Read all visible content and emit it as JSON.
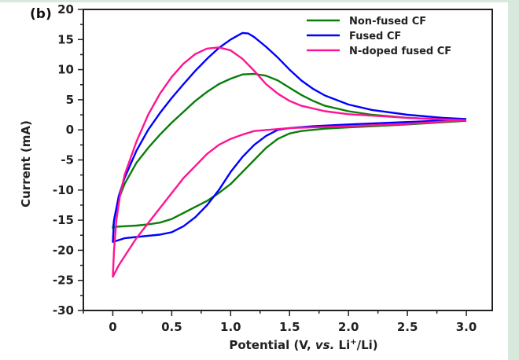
{
  "chart_data": {
    "type": "line",
    "panel_label": "(b)",
    "title": "",
    "xlabel": "Potential (V, vs. Li⁺/Li)",
    "xlabel_parts": [
      "Potential (V, ",
      "vs.",
      " Li",
      "+",
      "/Li)"
    ],
    "ylabel": "Current (mA)",
    "xlim": [
      -0.25,
      3.22
    ],
    "ylim": [
      -30,
      20
    ],
    "xticks": [
      0,
      0.5,
      1.0,
      1.5,
      2.0,
      2.5,
      3.0
    ],
    "xtick_labels": [
      "0",
      "0.5",
      "1.0",
      "1.5",
      "2.0",
      "2.5",
      "3.0"
    ],
    "xminor_ticks": [
      -0.25,
      0.25,
      0.75,
      1.25,
      1.75,
      2.25,
      2.75
    ],
    "yticks": [
      20,
      15,
      10,
      5,
      0,
      -5,
      -10,
      -15,
      -20,
      -25,
      -30
    ],
    "ytick_labels": [
      "20",
      "15",
      "10",
      "5",
      "0",
      "-5",
      "-10",
      "-15",
      "-20",
      "-25",
      "-30"
    ],
    "yminor_ticks": [
      17.5,
      12.5,
      7.5,
      2.5,
      -2.5,
      -7.5,
      -12.5,
      -17.5,
      -22.5,
      -27.5
    ],
    "grid": false,
    "legend_position": "top-right",
    "series": [
      {
        "name": "Non-fused CF",
        "color": "#0a7d0a",
        "points": [
          [
            3.0,
            1.5
          ],
          [
            2.5,
            0.9
          ],
          [
            2.0,
            0.4
          ],
          [
            1.8,
            0.2
          ],
          [
            1.6,
            -0.2
          ],
          [
            1.5,
            -0.6
          ],
          [
            1.4,
            -1.5
          ],
          [
            1.3,
            -3.0
          ],
          [
            1.2,
            -5.0
          ],
          [
            1.1,
            -7.0
          ],
          [
            1.0,
            -9.0
          ],
          [
            0.9,
            -10.5
          ],
          [
            0.8,
            -11.8
          ],
          [
            0.7,
            -12.8
          ],
          [
            0.6,
            -13.8
          ],
          [
            0.5,
            -14.8
          ],
          [
            0.4,
            -15.4
          ],
          [
            0.3,
            -15.7
          ],
          [
            0.2,
            -15.9
          ],
          [
            0.1,
            -16.0
          ],
          [
            0.02,
            -16.1
          ],
          [
            0.0,
            -16.3
          ],
          [
            0.02,
            -14.0
          ],
          [
            0.05,
            -11.5
          ],
          [
            0.1,
            -9.0
          ],
          [
            0.2,
            -5.5
          ],
          [
            0.3,
            -3.0
          ],
          [
            0.4,
            -0.8
          ],
          [
            0.5,
            1.2
          ],
          [
            0.6,
            3.0
          ],
          [
            0.7,
            4.8
          ],
          [
            0.8,
            6.3
          ],
          [
            0.9,
            7.6
          ],
          [
            1.0,
            8.5
          ],
          [
            1.1,
            9.2
          ],
          [
            1.2,
            9.3
          ],
          [
            1.3,
            9.0
          ],
          [
            1.4,
            8.2
          ],
          [
            1.5,
            7.0
          ],
          [
            1.6,
            5.8
          ],
          [
            1.7,
            4.8
          ],
          [
            1.8,
            4.0
          ],
          [
            2.0,
            3.1
          ],
          [
            2.2,
            2.5
          ],
          [
            2.5,
            2.0
          ],
          [
            2.8,
            1.7
          ],
          [
            3.0,
            1.5
          ]
        ]
      },
      {
        "name": "Fused CF",
        "color": "#0000ff",
        "points": [
          [
            3.0,
            1.7
          ],
          [
            2.5,
            1.3
          ],
          [
            2.0,
            0.9
          ],
          [
            1.7,
            0.6
          ],
          [
            1.5,
            0.3
          ],
          [
            1.4,
            0.0
          ],
          [
            1.3,
            -1.0
          ],
          [
            1.2,
            -2.5
          ],
          [
            1.1,
            -4.5
          ],
          [
            1.0,
            -7.0
          ],
          [
            0.9,
            -10.0
          ],
          [
            0.8,
            -12.5
          ],
          [
            0.7,
            -14.5
          ],
          [
            0.6,
            -16.0
          ],
          [
            0.5,
            -17.0
          ],
          [
            0.4,
            -17.4
          ],
          [
            0.3,
            -17.6
          ],
          [
            0.2,
            -17.8
          ],
          [
            0.1,
            -18.0
          ],
          [
            0.02,
            -18.5
          ],
          [
            0.0,
            -18.6
          ],
          [
            0.01,
            -15.0
          ],
          [
            0.05,
            -11.0
          ],
          [
            0.1,
            -8.0
          ],
          [
            0.2,
            -3.5
          ],
          [
            0.3,
            0.0
          ],
          [
            0.4,
            2.8
          ],
          [
            0.5,
            5.3
          ],
          [
            0.6,
            7.6
          ],
          [
            0.7,
            9.8
          ],
          [
            0.8,
            11.8
          ],
          [
            0.9,
            13.6
          ],
          [
            1.0,
            15.0
          ],
          [
            1.1,
            16.1
          ],
          [
            1.15,
            16.0
          ],
          [
            1.2,
            15.4
          ],
          [
            1.3,
            13.8
          ],
          [
            1.4,
            12.0
          ],
          [
            1.5,
            10.0
          ],
          [
            1.6,
            8.2
          ],
          [
            1.7,
            6.8
          ],
          [
            1.8,
            5.7
          ],
          [
            2.0,
            4.2
          ],
          [
            2.2,
            3.3
          ],
          [
            2.5,
            2.5
          ],
          [
            2.8,
            2.0
          ],
          [
            3.0,
            1.8
          ]
        ]
      },
      {
        "name": "N-doped fused CF",
        "color": "#ff1493",
        "points": [
          [
            3.0,
            1.6
          ],
          [
            2.5,
            1.0
          ],
          [
            2.0,
            0.6
          ],
          [
            1.5,
            0.3
          ],
          [
            1.2,
            -0.2
          ],
          [
            1.1,
            -0.8
          ],
          [
            1.0,
            -1.5
          ],
          [
            0.9,
            -2.5
          ],
          [
            0.8,
            -4.0
          ],
          [
            0.7,
            -6.0
          ],
          [
            0.6,
            -8.0
          ],
          [
            0.5,
            -10.5
          ],
          [
            0.4,
            -13.0
          ],
          [
            0.3,
            -15.5
          ],
          [
            0.2,
            -18.0
          ],
          [
            0.1,
            -21.0
          ],
          [
            0.05,
            -22.5
          ],
          [
            0.0,
            -24.4
          ],
          [
            0.01,
            -20.0
          ],
          [
            0.03,
            -15.0
          ],
          [
            0.06,
            -11.0
          ],
          [
            0.1,
            -7.5
          ],
          [
            0.2,
            -2.0
          ],
          [
            0.3,
            2.5
          ],
          [
            0.4,
            6.0
          ],
          [
            0.5,
            8.8
          ],
          [
            0.6,
            11.0
          ],
          [
            0.7,
            12.6
          ],
          [
            0.8,
            13.5
          ],
          [
            0.9,
            13.7
          ],
          [
            1.0,
            13.2
          ],
          [
            1.1,
            11.8
          ],
          [
            1.2,
            9.8
          ],
          [
            1.3,
            7.6
          ],
          [
            1.4,
            6.0
          ],
          [
            1.5,
            4.8
          ],
          [
            1.6,
            4.0
          ],
          [
            1.8,
            3.1
          ],
          [
            2.0,
            2.6
          ],
          [
            2.5,
            2.0
          ],
          [
            3.0,
            1.6
          ]
        ]
      }
    ]
  }
}
